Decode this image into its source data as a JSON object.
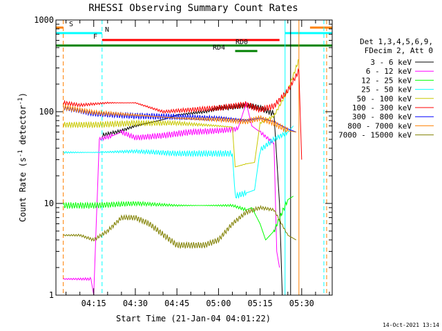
{
  "chart_data": {
    "type": "line",
    "title": "RHESSI Observing Summary Count Rates",
    "xlabel": "Start Time (21-Jan-04 04:01:22)",
    "ylabel": "Count Rate (s",
    "ylabel_sup": "-1",
    "ylabel_mid": " detector",
    "ylabel_end": ")",
    "y_scale": "log",
    "ylim": [
      1,
      1000
    ],
    "y_ticks": [
      {
        "value": 1,
        "label": "1"
      },
      {
        "value": 10,
        "label": "10"
      },
      {
        "value": 100,
        "label": "100"
      },
      {
        "value": 1000,
        "label": "1000"
      }
    ],
    "xlim": [
      "04:01:22",
      "05:41:00"
    ],
    "x_ticks": [
      "04:15",
      "04:30",
      "04:45",
      "05:00",
      "05:15",
      "05:30"
    ],
    "legend_header": [
      "Det 1,3,4,5,6,9,",
      "FDecim 2, Att 0"
    ],
    "legend_position": "right",
    "series": [
      {
        "name": "3 - 6 keV",
        "color": "#000000",
        "points": [
          [
            "04:18",
            55
          ],
          [
            "04:25",
            62
          ],
          [
            "04:30",
            70
          ],
          [
            "04:40",
            82
          ],
          [
            "04:45",
            92
          ],
          [
            "04:55",
            100
          ],
          [
            "05:00",
            110
          ],
          [
            "05:05",
            112
          ],
          [
            "05:10",
            118
          ],
          [
            "05:15",
            110
          ],
          [
            "05:20",
            95
          ],
          [
            "05:22",
            10
          ],
          [
            "05:23",
            1
          ]
        ]
      },
      {
        "name": "6 - 12 keV",
        "color": "#ff00ff",
        "points": [
          [
            "04:04",
            1.5
          ],
          [
            "04:14",
            1.5
          ],
          [
            "04:15",
            1
          ],
          [
            "04:17",
            50
          ],
          [
            "04:22",
            55
          ],
          [
            "04:25",
            60
          ],
          [
            "04:30",
            52
          ],
          [
            "04:40",
            55
          ],
          [
            "04:50",
            60
          ],
          [
            "05:00",
            62
          ],
          [
            "05:07",
            65
          ],
          [
            "05:10",
            125
          ],
          [
            "05:12",
            70
          ],
          [
            "05:15",
            60
          ],
          [
            "05:20",
            45
          ],
          [
            "05:21",
            3
          ],
          [
            "05:22",
            2
          ]
        ]
      },
      {
        "name": "12 - 25 keV",
        "color": "#00ff00",
        "points": [
          [
            "04:04",
            9.5
          ],
          [
            "04:15",
            9.5
          ],
          [
            "04:30",
            10
          ],
          [
            "04:45",
            9.5
          ],
          [
            "05:00",
            9.5
          ],
          [
            "05:05",
            9.5
          ],
          [
            "05:10",
            8.5
          ],
          [
            "05:12",
            9
          ],
          [
            "05:15",
            6
          ],
          [
            "05:17",
            4
          ],
          [
            "05:20",
            5
          ],
          [
            "05:25",
            11
          ],
          [
            "05:27",
            12
          ]
        ]
      },
      {
        "name": "25 - 50 keV",
        "color": "#00ffff",
        "points": [
          [
            "04:04",
            36
          ],
          [
            "04:15",
            36
          ],
          [
            "04:30",
            37
          ],
          [
            "04:45",
            35
          ],
          [
            "05:00",
            35
          ],
          [
            "05:05",
            35
          ],
          [
            "05:06",
            12
          ],
          [
            "05:10",
            13
          ],
          [
            "05:13",
            14
          ],
          [
            "05:15",
            38
          ],
          [
            "05:20",
            50
          ],
          [
            "05:25",
            60
          ],
          [
            "05:27",
            70
          ]
        ]
      },
      {
        "name": "50 - 100 keV",
        "color": "#c8c800",
        "points": [
          [
            "04:04",
            72
          ],
          [
            "04:15",
            72
          ],
          [
            "04:30",
            75
          ],
          [
            "04:45",
            75
          ],
          [
            "05:00",
            70
          ],
          [
            "05:05",
            68
          ],
          [
            "05:06",
            25
          ],
          [
            "05:10",
            27
          ],
          [
            "05:13",
            28
          ],
          [
            "05:15",
            75
          ],
          [
            "05:20",
            90
          ],
          [
            "05:25",
            170
          ],
          [
            "05:29",
            370
          ]
        ]
      },
      {
        "name": "100 - 300 keV",
        "color": "#ff0000",
        "points": [
          [
            "04:04",
            125
          ],
          [
            "04:10",
            118
          ],
          [
            "04:20",
            125
          ],
          [
            "04:30",
            125
          ],
          [
            "04:40",
            100
          ],
          [
            "04:50",
            105
          ],
          [
            "05:00",
            110
          ],
          [
            "05:10",
            120
          ],
          [
            "05:15",
            105
          ],
          [
            "05:20",
            115
          ],
          [
            "05:25",
            170
          ],
          [
            "05:29",
            280
          ],
          [
            "05:30",
            30
          ]
        ]
      },
      {
        "name": "300 - 800 keV",
        "color": "#0000ff",
        "points": [
          [
            "04:04",
            110
          ],
          [
            "04:15",
            95
          ],
          [
            "04:30",
            90
          ],
          [
            "04:45",
            88
          ],
          [
            "05:00",
            85
          ],
          [
            "05:10",
            80
          ],
          [
            "05:15",
            85
          ],
          [
            "05:20",
            78
          ],
          [
            "05:25",
            65
          ],
          [
            "05:28",
            60
          ]
        ]
      },
      {
        "name": "800 - 7000 keV",
        "color": "#ff8000",
        "points": [
          [
            "04:04",
            112
          ],
          [
            "04:15",
            98
          ],
          [
            "04:30",
            92
          ],
          [
            "04:45",
            85
          ],
          [
            "05:00",
            82
          ],
          [
            "05:10",
            78
          ],
          [
            "05:15",
            85
          ],
          [
            "05:20",
            75
          ],
          [
            "05:25",
            62
          ],
          [
            "05:28",
            60
          ]
        ]
      },
      {
        "name": "7000 - 15000 keV",
        "color": "#808000",
        "points": [
          [
            "04:04",
            4.5
          ],
          [
            "04:10",
            4.5
          ],
          [
            "04:15",
            4
          ],
          [
            "04:20",
            5
          ],
          [
            "04:25",
            7
          ],
          [
            "04:30",
            7
          ],
          [
            "04:35",
            6
          ],
          [
            "04:45",
            3.5
          ],
          [
            "04:55",
            3.5
          ],
          [
            "05:00",
            4
          ],
          [
            "05:05",
            6
          ],
          [
            "05:10",
            8
          ],
          [
            "05:15",
            9
          ],
          [
            "05:20",
            8.5
          ],
          [
            "05:25",
            4.5
          ],
          [
            "05:28",
            4
          ]
        ]
      }
    ],
    "flag_bars": [
      {
        "label": "S",
        "color": "#ff8000",
        "start": "04:01:22",
        "end": "04:04",
        "level": "top-1"
      },
      {
        "label": "",
        "color": "#ff8000",
        "start": "05:33",
        "end": "05:41",
        "level": "top-1"
      },
      {
        "label": "N",
        "color": "#00ffff",
        "start": "04:01:22",
        "end": "04:18",
        "level": "top-2"
      },
      {
        "label": "",
        "color": "#00ffff",
        "start": "05:24",
        "end": "05:41",
        "level": "top-2"
      },
      {
        "label": "F",
        "color": "#ff0000",
        "start": "04:18",
        "end": "05:22",
        "level": "top-3"
      },
      {
        "label": "",
        "color": "#008000",
        "start": "04:01:22",
        "end": "05:41",
        "level": "top-4"
      },
      {
        "label": "RD0",
        "color": "#008000",
        "start": "",
        "end": "",
        "level": "top-4"
      },
      {
        "label": "RD4",
        "color": "#008000",
        "start": "05:06",
        "end": "05:14",
        "level": "top-5"
      }
    ],
    "vlines": [
      {
        "time": "04:04",
        "color": "#ff8000",
        "style": "dashed"
      },
      {
        "time": "04:18",
        "color": "#00ffff",
        "style": "dashed"
      },
      {
        "time": "05:24",
        "color": "#00ffff",
        "style": "solid"
      },
      {
        "time": "05:29",
        "color": "#ff8000",
        "style": "solid"
      },
      {
        "time": "05:38",
        "color": "#00ffff",
        "style": "dashed"
      },
      {
        "time": "05:39",
        "color": "#ff8000",
        "style": "dashed"
      },
      {
        "time": "05:26",
        "color": "#000000",
        "style": "solid"
      }
    ]
  },
  "footer": {
    "timestamp": "14-Oct-2021 13:14"
  }
}
